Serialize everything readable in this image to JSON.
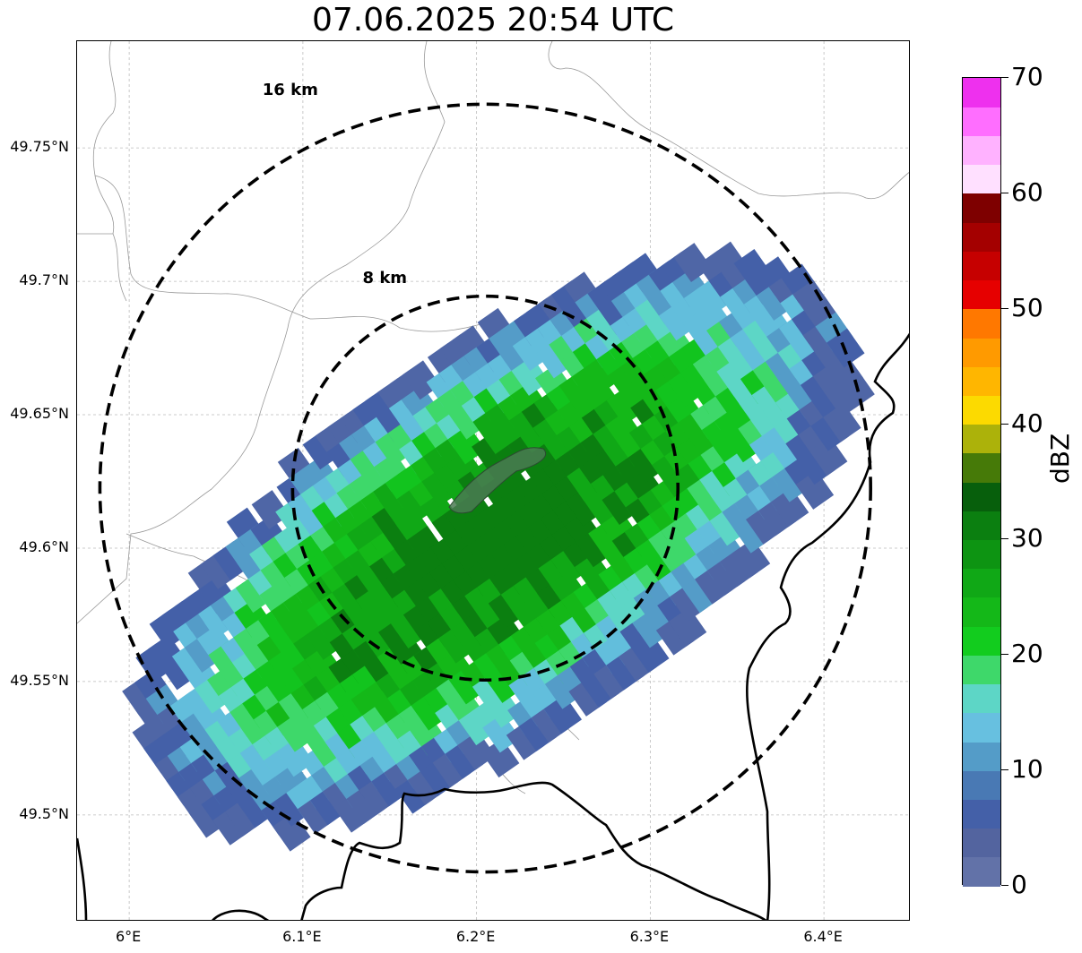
{
  "title": "07.06.2025 20:54 UTC",
  "map": {
    "lon_range": [
      5.97,
      6.45
    ],
    "lat_range": [
      49.46,
      49.79
    ],
    "lat_ticks": [
      "49.75°N",
      "49.7°N",
      "49.65°N",
      "49.6°N",
      "49.55°N",
      "49.5°N"
    ],
    "lat_values": [
      49.75,
      49.7,
      49.65,
      49.6,
      49.55,
      49.5
    ],
    "lon_ticks": [
      "6°E",
      "6.1°E",
      "6.2°E",
      "6.3°E",
      "6.4°E"
    ],
    "lon_values": [
      6.0,
      6.1,
      6.2,
      6.3,
      6.4
    ],
    "range_rings": [
      {
        "label": "8 km",
        "radius_km": 8
      },
      {
        "label": "16 km",
        "radius_km": 16
      }
    ],
    "grid": true,
    "echo_colors": {
      "low": "#4f66a6",
      "mid_blue": "#62bedc",
      "green": "#12c41e",
      "dark_green": "#0b7f10"
    }
  },
  "colorbar": {
    "label": "dBZ",
    "min": 0,
    "max": 70,
    "tick_labels": [
      "0",
      "10",
      "20",
      "30",
      "40",
      "50",
      "60",
      "70"
    ],
    "tick_values": [
      0,
      10,
      20,
      30,
      40,
      50,
      60,
      70
    ],
    "colors": [
      "#6272a8",
      "#53649f",
      "#4460a8",
      "#4979b4",
      "#549cc8",
      "#67c0e0",
      "#5dd6c6",
      "#3ed86a",
      "#12cc1e",
      "#14b818",
      "#10a816",
      "#0d9412",
      "#0b7f10",
      "#075f0c",
      "#467a08",
      "#acb20a",
      "#fcda00",
      "#ffb600",
      "#ff9a00",
      "#ff7800",
      "#e60000",
      "#c60000",
      "#a40000",
      "#7e0000",
      "#ffe0ff",
      "#ffb2ff",
      "#ff6eff",
      "#ee30ee"
    ]
  }
}
